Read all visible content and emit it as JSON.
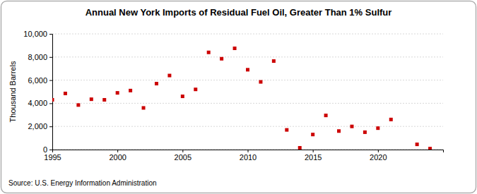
{
  "chart_data": {
    "type": "scatter",
    "title": "Annual New York Imports of Residual Fuel Oil, Greater Than 1% Sulfur",
    "y_label": "Thousand Barrels",
    "source": "Source: U.S. Energy Information Administration",
    "x": [
      1995,
      1996,
      1997,
      1998,
      1999,
      2000,
      2001,
      2002,
      2003,
      2004,
      2005,
      2006,
      2007,
      2008,
      2009,
      2010,
      2011,
      2012,
      2013,
      2014,
      2015,
      2016,
      2017,
      2018,
      2019,
      2020,
      2021,
      2023,
      2024
    ],
    "series": [
      {
        "name": "New York",
        "color": "#cc0000",
        "marker": "square",
        "values": [
          4300,
          4850,
          3850,
          4350,
          4300,
          4900,
          5100,
          3600,
          5700,
          6400,
          4600,
          5200,
          8400,
          7850,
          8750,
          6900,
          5850,
          7650,
          1700,
          150,
          1300,
          2950,
          1600,
          2000,
          1500,
          1850,
          2600,
          450,
          80
        ]
      }
    ],
    "xlim": [
      1995,
      2025
    ],
    "xticks": [
      1995,
      2000,
      2005,
      2010,
      2015,
      2020
    ],
    "ylim": [
      0,
      10000
    ],
    "yticks": [
      0,
      {
        "value": 2000,
        "label": "2,000"
      },
      {
        "value": 4000,
        "label": "4,000"
      },
      {
        "value": 6000,
        "label": "6,000"
      },
      {
        "value": 8000,
        "label": "8,000"
      },
      {
        "value": 10000,
        "label": "10,000"
      }
    ],
    "grid": true
  }
}
